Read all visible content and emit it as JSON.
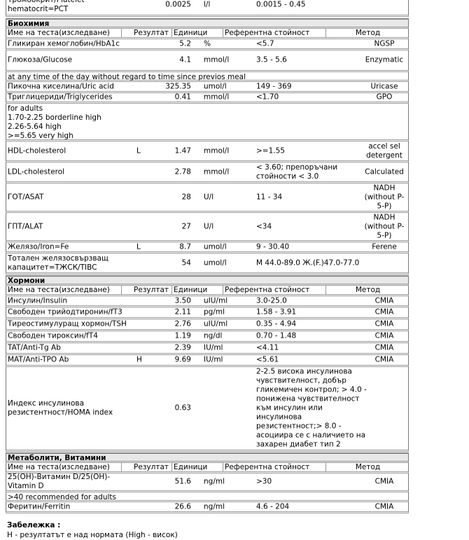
{
  "columns": {
    "name": "Име на теста(изследване)",
    "result": "Резултат",
    "units": "Единици",
    "ref": "Референтна стойност",
    "method": "Метод"
  },
  "top_row": {
    "name": "Тромбокрит/Platelet hematocrit=PCT",
    "result": "0.0025",
    "units": "l/l",
    "ref": "0.0015 - 0.45"
  },
  "sections": [
    {
      "title": "Биохимия",
      "rows": [
        {
          "name": "Гликиран хемоглобин/HbA1c",
          "result": "5.2",
          "units": "%",
          "ref": "<5.7",
          "method": "NGSP"
        },
        {
          "name": "Глюкоза/Glucose",
          "result": "4.1",
          "units": "mmol/l",
          "ref": "3.5 - 5.6",
          "method": "Enzymatic"
        },
        {
          "note": "at any time of the day without regard to time since previos meal"
        },
        {
          "name": "Пикочна киселина/Uric acid",
          "result": "325.35",
          "units": "umol/l",
          "ref": "149 - 369",
          "method": "Uricase"
        },
        {
          "name": "Триглицериди/Triglycerides",
          "result": "0.41",
          "units": "mmol/l",
          "ref": "<1.70",
          "method": "GPO"
        },
        {
          "note": "for adults\n1.70-2.25 borderline high\n2.26-5.64 high\n>=5.65 very high"
        },
        {
          "name": "HDL-cholesterol",
          "flag": "L",
          "result": "1.47",
          "units": "mmol/l",
          "ref": ">=1.55",
          "method": "accel sel detergent"
        },
        {
          "name": "LDL-cholesterol",
          "result": "2.78",
          "units": "mmol/l",
          "ref": "< 3.60; препоръчани стойности < 3.0",
          "method": "Calculated"
        },
        {
          "name": "ГОТ/ASAT",
          "result": "28",
          "units": "U/l",
          "ref": "11 - 34",
          "method": "NADH (without P-5-P)"
        },
        {
          "name": "ГПТ/ALAT",
          "result": "27",
          "units": "U/l",
          "ref": "<34",
          "method": "NADH (without P-5-P)"
        },
        {
          "name": "Желязо/Iron=Fe",
          "flag": "L",
          "result": "8.7",
          "units": "umol/l",
          "ref": "9 - 30.40",
          "method": "Ferene"
        },
        {
          "name": "Тотален желязосвързващ капацитет=ТЖСК/TIBC",
          "result": "54",
          "units": "umol/l",
          "ref": "М 44.0-89.0 Ж.(F.)47.0-77.0"
        }
      ]
    },
    {
      "title": "Хормони",
      "rows": [
        {
          "name": "Инсулин/Insulin",
          "result": "3.50",
          "units": "uIU/ml",
          "ref": "3.0-25.0",
          "method": "CMIA"
        },
        {
          "name": "Свободен трийодтиронин/fT3",
          "result": "2.11",
          "units": "pg/ml",
          "ref": "1.58 - 3.91",
          "method": "CMIA"
        },
        {
          "name": "Тиреостимулуращ хормон/TSH",
          "result": "2.76",
          "units": "uIU/ml",
          "ref": "0.35 - 4.94",
          "method": "CMIA"
        },
        {
          "name": "Свободен тироксин/fT4",
          "result": "1.19",
          "units": "ng/dl",
          "ref": "0.70 - 1.48",
          "method": "CMIA"
        },
        {
          "name": "TAT/Anti-Tg Ab",
          "result": "2.39",
          "units": "IU/ml",
          "ref": "<4.11",
          "method": "CMIA"
        },
        {
          "name": "MAT/Anti-TPO Ab",
          "flag": "H",
          "result": "9.69",
          "units": "IU/ml",
          "ref": "<5.61",
          "method": "CMIA"
        },
        {
          "name": "Индекс инсулинова резистентност/HOMA index",
          "result": "0.63",
          "units": "",
          "ref": "2-2.5 висока инсулинова чувствителност, добър гликемичен контрол; > 4.0 - понижена чувствителност към инсулин или инсулинова резистентност;> 8.0 - асоциира се с наличието на захарен диабет тип 2"
        }
      ]
    },
    {
      "title": "Метаболити, Витамини",
      "rows": [
        {
          "name": "25(OH)-Витамин D/25(OH)-Vitamin D",
          "result": "51.6",
          "units": "ng/ml",
          "ref": ">30",
          "method": "CMIA"
        },
        {
          "note": ">40 recommended for adults"
        },
        {
          "name": "Феритин/Ferritin",
          "result": "26.6",
          "units": "ng/ml",
          "ref": "4.6 - 204",
          "method": "CMIA"
        }
      ]
    }
  ],
  "footer": {
    "title": "Забележка :",
    "line": "H - резултатът е над нормата (High - висок)"
  }
}
